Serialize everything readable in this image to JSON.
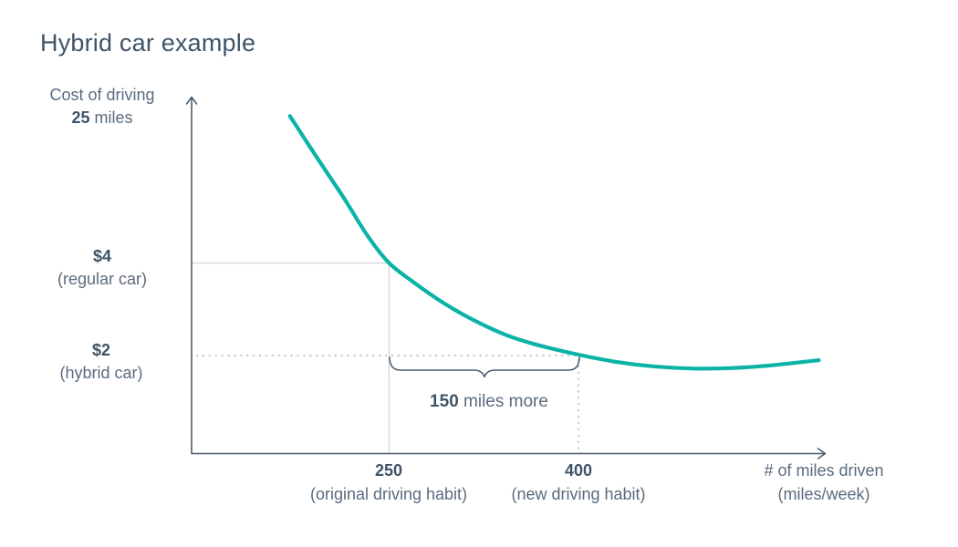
{
  "title": "Hybrid car example",
  "colors": {
    "curve": "#0ab3a6",
    "axis": "#4a5d6e",
    "guide_solid": "#cfd4d9",
    "guide_dotted": "#c7cdd3",
    "text": "#5a6b7e",
    "text_dark": "#3f5468"
  },
  "y_axis": {
    "title_line1": "Cost of driving",
    "title_bold": "25",
    "title_suffix": "miles",
    "ticks": [
      {
        "value": "$4",
        "caption": "(regular car)"
      },
      {
        "value": "$2",
        "caption": "(hybrid car)"
      }
    ]
  },
  "x_axis": {
    "title_line1": "# of miles driven",
    "title_line2": "(miles/week)",
    "ticks": [
      {
        "value": "250",
        "caption": "(original driving habit)"
      },
      {
        "value": "400",
        "caption": "(new driving habit)"
      }
    ]
  },
  "annotation": {
    "bold": "150",
    "text": "miles more"
  },
  "chart_data": {
    "type": "line",
    "title": "Hybrid car example",
    "xlabel": "# of miles driven (miles/week)",
    "ylabel": "Cost of driving 25 miles ($)",
    "x_ticks": [
      250,
      400
    ],
    "y_ticks": [
      4,
      2
    ],
    "xlim": [
      95,
      615
    ],
    "ylim": [
      0,
      7.6
    ],
    "grid": false,
    "legend": false,
    "highlight_points": [
      {
        "x": 250,
        "y": 4,
        "label": "$4 (regular car) at 250 miles/week (original driving habit)"
      },
      {
        "x": 400,
        "y": 2,
        "label": "$2 (hybrid car) at 400 miles/week (new driving habit)"
      }
    ],
    "annotation": "150 miles more (difference between 400 and 250 miles/week)",
    "series": [
      {
        "name": "Cost of driving 25 miles vs miles driven per week",
        "points": [
          [
            172,
            7.15
          ],
          [
            193,
            6.27
          ],
          [
            215,
            5.37
          ],
          [
            233,
            4.59
          ],
          [
            250,
            4.0
          ],
          [
            270,
            3.57
          ],
          [
            294,
            3.12
          ],
          [
            318,
            2.75
          ],
          [
            342,
            2.45
          ],
          [
            366,
            2.24
          ],
          [
            400,
            2.02
          ],
          [
            433,
            1.85
          ],
          [
            462,
            1.76
          ],
          [
            491,
            1.72
          ],
          [
            520,
            1.73
          ],
          [
            549,
            1.78
          ],
          [
            570,
            1.84
          ],
          [
            590,
            1.9
          ]
        ]
      }
    ]
  }
}
